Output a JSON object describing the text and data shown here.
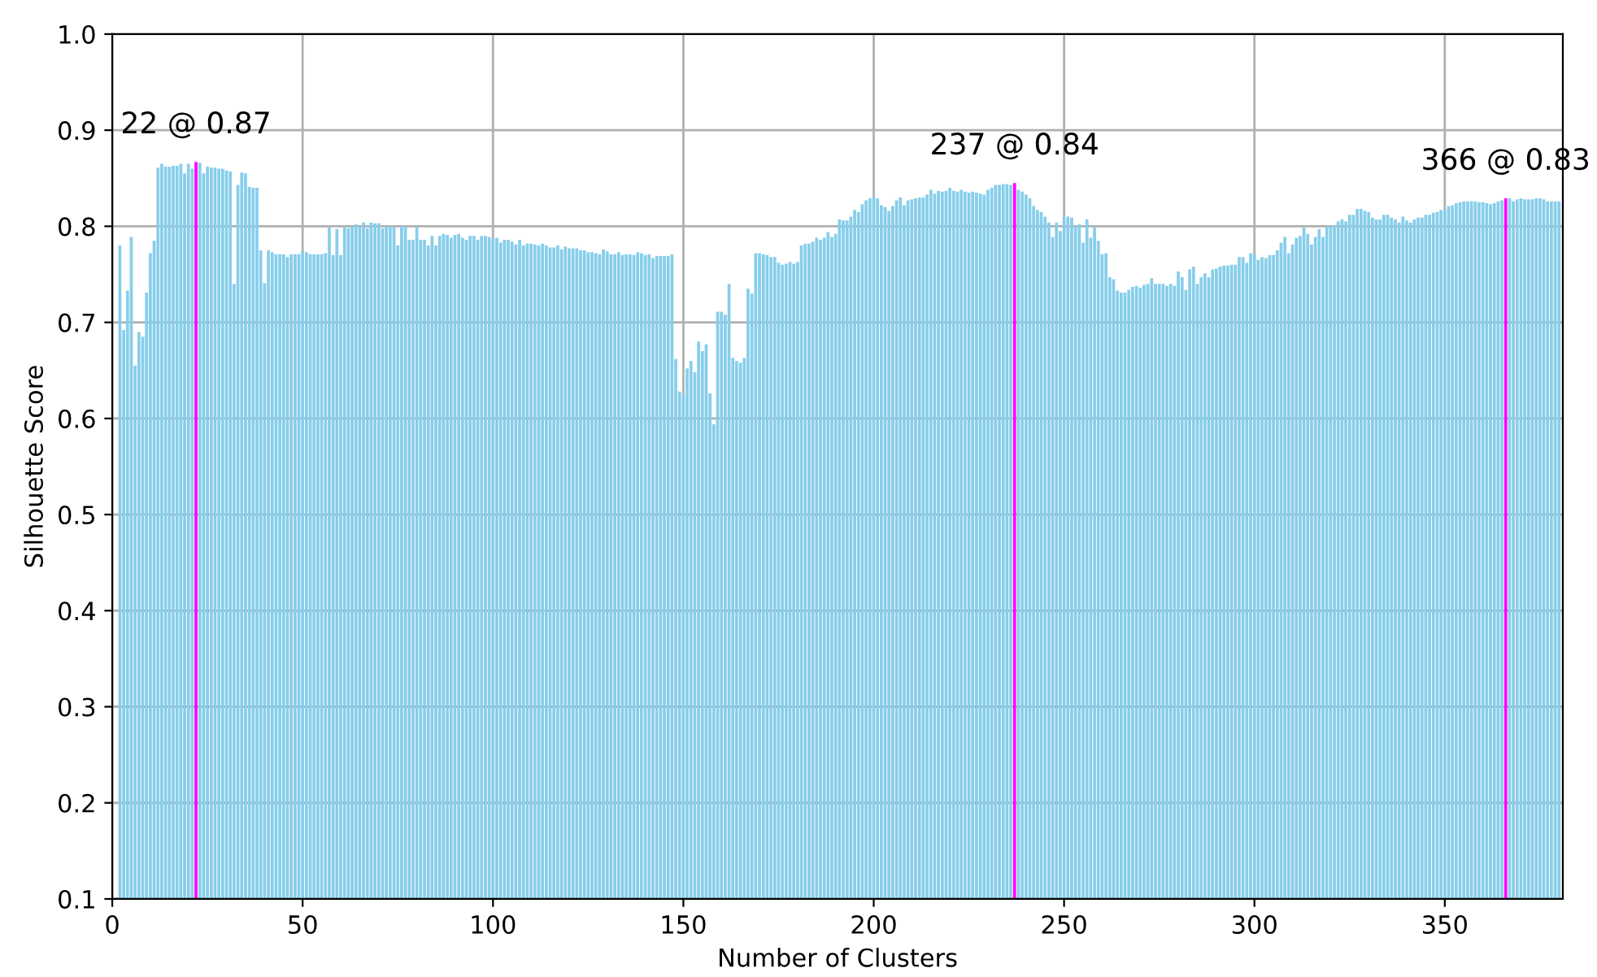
{
  "chart_data": {
    "type": "bar",
    "xlabel": "Number of Clusters",
    "ylabel": "Silhouette Score",
    "xlim": [
      0,
      381
    ],
    "xticks": [
      0,
      50,
      100,
      150,
      200,
      250,
      300,
      350
    ],
    "ylim": [
      0.1,
      1.0
    ],
    "yticks": [
      {
        "value": 0.1,
        "label": "0.1"
      },
      {
        "value": 0.2,
        "label": "0.2"
      },
      {
        "value": 0.3,
        "label": "0.3"
      },
      {
        "value": 0.4,
        "label": "0.4"
      },
      {
        "value": 0.5,
        "label": "0.5"
      },
      {
        "value": 0.6,
        "label": "0.6"
      },
      {
        "value": 0.7,
        "label": "0.7"
      },
      {
        "value": 0.8,
        "label": "0.8"
      },
      {
        "value": 0.9,
        "label": "0.9"
      },
      {
        "value": 1.0,
        "label": "1.0"
      }
    ],
    "grid": true,
    "annotations": [
      {
        "text": "22 @ 0.87",
        "x": 22,
        "y": 0.867
      },
      {
        "text": "237 @ 0.84",
        "x": 237,
        "y": 0.845
      },
      {
        "text": "366 @ 0.83",
        "x": 366,
        "y": 0.829
      }
    ],
    "series": [
      {
        "color": "#87ceeb",
        "x": [
          2,
          3,
          4,
          5,
          6,
          7,
          8,
          9,
          10,
          11,
          12,
          13,
          14,
          15,
          16,
          17,
          18,
          19,
          20,
          21,
          22,
          23,
          24,
          25,
          26,
          27,
          28,
          29,
          30,
          31,
          32,
          33,
          34,
          35,
          36,
          37,
          38,
          39,
          40,
          41,
          42,
          43,
          44,
          45,
          46,
          47,
          48,
          49,
          50,
          51,
          52,
          53,
          54,
          55,
          56,
          57,
          58,
          59,
          60,
          61,
          62,
          63,
          64,
          65,
          66,
          67,
          68,
          69,
          70,
          71,
          72,
          73,
          74,
          75,
          76,
          77,
          78,
          79,
          80,
          81,
          82,
          83,
          84,
          85,
          86,
          87,
          88,
          89,
          90,
          91,
          92,
          93,
          94,
          95,
          96,
          97,
          98,
          99,
          100,
          101,
          102,
          103,
          104,
          105,
          106,
          107,
          108,
          109,
          110,
          111,
          112,
          113,
          114,
          115,
          116,
          117,
          118,
          119,
          120,
          121,
          122,
          123,
          124,
          125,
          126,
          127,
          128,
          129,
          130,
          131,
          132,
          133,
          134,
          135,
          136,
          137,
          138,
          139,
          140,
          141,
          142,
          143,
          144,
          145,
          146,
          147,
          148,
          149,
          150,
          151,
          152,
          153,
          154,
          155,
          156,
          157,
          158,
          159,
          160,
          161,
          162,
          163,
          164,
          165,
          166,
          167,
          168,
          169,
          170,
          171,
          172,
          173,
          174,
          175,
          176,
          177,
          178,
          179,
          180,
          181,
          182,
          183,
          184,
          185,
          186,
          187,
          188,
          189,
          190,
          191,
          192,
          193,
          194,
          195,
          196,
          197,
          198,
          199,
          200,
          201,
          202,
          203,
          204,
          205,
          206,
          207,
          208,
          209,
          210,
          211,
          212,
          213,
          214,
          215,
          216,
          217,
          218,
          219,
          220,
          221,
          222,
          223,
          224,
          225,
          226,
          227,
          228,
          229,
          230,
          231,
          232,
          233,
          234,
          235,
          236,
          237,
          238,
          239,
          240,
          241,
          242,
          243,
          244,
          245,
          246,
          247,
          248,
          249,
          250,
          251,
          252,
          253,
          254,
          255,
          256,
          257,
          258,
          259,
          260,
          261,
          262,
          263,
          264,
          265,
          266,
          267,
          268,
          269,
          270,
          271,
          272,
          273,
          274,
          275,
          276,
          277,
          278,
          279,
          280,
          281,
          282,
          283,
          284,
          285,
          286,
          287,
          288,
          289,
          290,
          291,
          292,
          293,
          294,
          295,
          296,
          297,
          298,
          299,
          300,
          301,
          302,
          303,
          304,
          305,
          306,
          307,
          308,
          309,
          310,
          311,
          312,
          313,
          314,
          315,
          316,
          317,
          318,
          319,
          320,
          321,
          322,
          323,
          324,
          325,
          326,
          327,
          328,
          329,
          330,
          331,
          332,
          333,
          334,
          335,
          336,
          337,
          338,
          339,
          340,
          341,
          342,
          343,
          344,
          345,
          346,
          347,
          348,
          349,
          350,
          351,
          352,
          353,
          354,
          355,
          356,
          357,
          358,
          359,
          360,
          361,
          362,
          363,
          364,
          365,
          366,
          367,
          368,
          369,
          370,
          371,
          372,
          373,
          374,
          375,
          376,
          377,
          378,
          379,
          380
        ],
        "values": [
          0.78,
          0.692,
          0.733,
          0.789,
          0.655,
          0.69,
          0.685,
          0.731,
          0.772,
          0.785,
          0.861,
          0.865,
          0.862,
          0.862,
          0.863,
          0.863,
          0.865,
          0.855,
          0.865,
          0.86,
          null,
          0.866,
          0.855,
          0.862,
          0.861,
          0.861,
          0.86,
          0.86,
          0.858,
          0.857,
          0.74,
          0.843,
          0.856,
          0.855,
          0.841,
          0.84,
          0.84,
          0.775,
          0.741,
          0.775,
          0.773,
          0.771,
          0.771,
          0.771,
          0.768,
          0.771,
          0.771,
          0.771,
          0.774,
          0.773,
          0.771,
          0.771,
          0.771,
          0.771,
          0.772,
          0.799,
          0.77,
          0.797,
          0.77,
          0.8,
          0.798,
          0.8,
          0.802,
          0.8,
          0.804,
          0.798,
          0.804,
          0.803,
          0.803,
          0.798,
          0.8,
          0.8,
          0.8,
          0.78,
          0.8,
          0.8,
          0.786,
          0.786,
          0.8,
          0.786,
          0.786,
          0.78,
          0.79,
          0.78,
          0.79,
          0.792,
          0.791,
          0.788,
          0.791,
          0.792,
          0.788,
          0.786,
          0.79,
          0.79,
          0.786,
          0.79,
          0.79,
          0.789,
          0.787,
          0.788,
          0.783,
          0.786,
          0.786,
          0.784,
          0.781,
          0.786,
          0.78,
          0.782,
          0.782,
          0.781,
          0.78,
          0.782,
          0.78,
          0.778,
          0.778,
          0.78,
          0.776,
          0.779,
          0.777,
          0.777,
          0.777,
          0.775,
          0.775,
          0.773,
          0.773,
          0.772,
          0.771,
          0.776,
          0.774,
          0.771,
          0.771,
          0.773,
          0.77,
          0.771,
          0.771,
          0.77,
          0.773,
          0.772,
          0.77,
          0.771,
          0.767,
          0.769,
          0.769,
          0.769,
          0.769,
          0.771,
          0.662,
          0.628,
          0.625,
          0.652,
          0.66,
          0.648,
          0.68,
          0.67,
          0.677,
          0.626,
          0.594,
          0.711,
          0.711,
          0.708,
          0.74,
          0.663,
          0.66,
          0.658,
          0.663,
          0.735,
          0.73,
          0.772,
          0.772,
          0.771,
          0.77,
          0.768,
          0.768,
          0.762,
          0.76,
          0.761,
          0.763,
          0.761,
          0.763,
          0.78,
          0.782,
          0.782,
          0.784,
          0.788,
          0.786,
          0.788,
          0.794,
          0.789,
          0.792,
          0.807,
          0.806,
          0.806,
          0.81,
          0.817,
          0.815,
          0.823,
          0.827,
          0.829,
          0.83,
          0.829,
          0.822,
          0.82,
          0.816,
          0.821,
          0.827,
          0.83,
          0.822,
          0.827,
          0.828,
          0.829,
          0.83,
          0.83,
          0.833,
          0.838,
          0.834,
          0.837,
          0.836,
          0.837,
          0.84,
          0.837,
          0.836,
          0.838,
          0.836,
          0.835,
          0.836,
          0.835,
          0.834,
          0.833,
          0.838,
          0.84,
          0.843,
          0.843,
          0.844,
          0.844,
          0.843,
          null,
          0.838,
          0.836,
          0.833,
          0.829,
          0.821,
          0.817,
          0.815,
          0.81,
          0.804,
          0.789,
          0.804,
          0.795,
          0.81,
          0.81,
          0.809,
          0.8,
          0.802,
          0.783,
          0.807,
          0.788,
          0.799,
          0.785,
          0.771,
          0.772,
          0.747,
          0.745,
          0.733,
          0.731,
          0.731,
          0.734,
          0.737,
          0.738,
          0.736,
          0.739,
          0.74,
          0.746,
          0.74,
          0.74,
          0.74,
          0.738,
          0.74,
          0.738,
          0.753,
          0.747,
          0.734,
          0.755,
          0.758,
          0.74,
          0.747,
          0.751,
          0.747,
          0.755,
          0.756,
          0.758,
          0.759,
          0.759,
          0.76,
          0.76,
          0.768,
          0.768,
          0.762,
          0.772,
          0.771,
          0.765,
          0.768,
          0.767,
          0.77,
          0.77,
          0.775,
          0.783,
          0.789,
          0.772,
          0.781,
          0.788,
          0.79,
          0.799,
          0.792,
          0.781,
          0.789,
          0.797,
          0.789,
          0.8,
          0.8,
          0.801,
          0.805,
          0.807,
          0.805,
          0.812,
          0.812,
          0.818,
          0.818,
          0.816,
          0.815,
          0.809,
          0.807,
          0.807,
          0.812,
          0.812,
          0.809,
          0.807,
          0.804,
          0.81,
          0.806,
          0.804,
          0.807,
          0.809,
          0.809,
          0.812,
          0.812,
          0.814,
          0.815,
          0.817,
          0.817,
          0.821,
          0.822,
          0.824,
          0.825,
          0.826,
          0.826,
          0.826,
          0.826,
          0.825,
          0.825,
          0.824,
          0.823,
          0.824,
          0.826,
          0.827,
          null,
          0.829,
          0.826,
          0.828,
          0.829,
          0.828,
          0.828,
          0.828,
          0.829,
          0.829,
          0.828,
          0.826,
          0.826,
          0.826,
          0.826
        ]
      },
      {
        "color": "#ff00ff",
        "x": [
          22,
          237,
          366
        ],
        "values": [
          0.867,
          0.845,
          0.829
        ]
      }
    ]
  }
}
